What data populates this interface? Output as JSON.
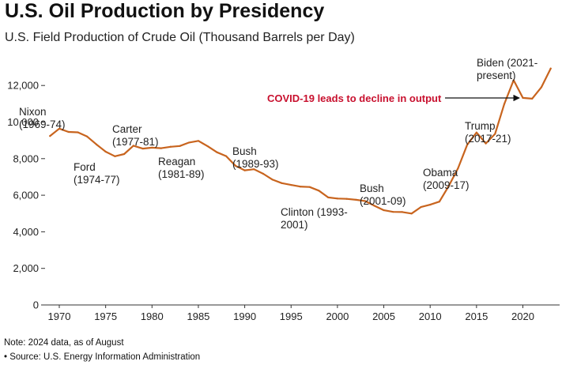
{
  "chart_data": {
    "type": "line",
    "title": "U.S. Oil Production by Presidency",
    "subtitle": "U.S. Field Production of Crude Oil (Thousand Barrels per Day)",
    "xlabel": "",
    "ylabel": "",
    "xlim": [
      1969,
      2024
    ],
    "ylim": [
      0,
      13000
    ],
    "grid": false,
    "line_color": "#c8641e",
    "yticks": [
      {
        "value": 0,
        "label": "0"
      },
      {
        "value": 2000,
        "label": "2,000"
      },
      {
        "value": 4000,
        "label": "4,000"
      },
      {
        "value": 6000,
        "label": "6,000"
      },
      {
        "value": 8000,
        "label": "8,000"
      },
      {
        "value": 10000,
        "label": "10,000"
      },
      {
        "value": 12000,
        "label": "12,000"
      }
    ],
    "xticks": [
      {
        "value": 1970,
        "label": "1970"
      },
      {
        "value": 1975,
        "label": "1975"
      },
      {
        "value": 1980,
        "label": "1980"
      },
      {
        "value": 1985,
        "label": "1985"
      },
      {
        "value": 1990,
        "label": "1990"
      },
      {
        "value": 1995,
        "label": "1995"
      },
      {
        "value": 2000,
        "label": "2000"
      },
      {
        "value": 2005,
        "label": "2005"
      },
      {
        "value": 2010,
        "label": "2010"
      },
      {
        "value": 2015,
        "label": "2015"
      },
      {
        "value": 2020,
        "label": "2020"
      }
    ],
    "series": [
      {
        "name": "U.S. Field Production of Crude Oil",
        "x": [
          1969,
          1970,
          1971,
          1972,
          1973,
          1974,
          1975,
          1976,
          1977,
          1978,
          1979,
          1980,
          1981,
          1982,
          1983,
          1984,
          1985,
          1986,
          1987,
          1988,
          1989,
          1990,
          1991,
          1992,
          1993,
          1994,
          1995,
          1996,
          1997,
          1998,
          1999,
          2000,
          2001,
          2002,
          2003,
          2004,
          2005,
          2006,
          2007,
          2008,
          2009,
          2010,
          2011,
          2012,
          2013,
          2014,
          2015,
          2016,
          2017,
          2018,
          2019,
          2020,
          2021,
          2022,
          2023
        ],
        "y": [
          9240,
          9640,
          9460,
          9440,
          9210,
          8780,
          8380,
          8130,
          8250,
          8710,
          8550,
          8600,
          8570,
          8650,
          8690,
          8880,
          8970,
          8680,
          8350,
          8140,
          7610,
          7360,
          7420,
          7170,
          6850,
          6660,
          6560,
          6470,
          6450,
          6250,
          5880,
          5820,
          5800,
          5750,
          5680,
          5420,
          5180,
          5090,
          5080,
          5000,
          5350,
          5480,
          5650,
          6500,
          7470,
          8760,
          9430,
          8830,
          9350,
          10990,
          12290,
          11320,
          11280,
          11910,
          12930
        ]
      }
    ],
    "annotations": [
      {
        "id": "nixon",
        "lines": [
          "Nixon",
          "(1969-74)"
        ]
      },
      {
        "id": "ford",
        "lines": [
          "Ford",
          "(1974-77)"
        ]
      },
      {
        "id": "carter",
        "lines": [
          "Carter",
          "(1977-81)"
        ]
      },
      {
        "id": "reagan",
        "lines": [
          "Reagan",
          "(1981-89)"
        ]
      },
      {
        "id": "bush1",
        "lines": [
          "Bush",
          "(1989-93)"
        ]
      },
      {
        "id": "clinton",
        "lines": [
          "Clinton (1993-",
          "2001)"
        ]
      },
      {
        "id": "bush2",
        "lines": [
          "Bush",
          "(2001-09)"
        ]
      },
      {
        "id": "obama",
        "lines": [
          "Obama",
          "(2009-17)"
        ]
      },
      {
        "id": "trump",
        "lines": [
          "Trump",
          "(2017-21)"
        ]
      },
      {
        "id": "biden",
        "lines": [
          "Biden (2021-",
          "present)"
        ]
      }
    ],
    "callout": {
      "text": "COVID-19 leads to decline in output",
      "color": "#c8102e",
      "points_to_year": 2019
    }
  },
  "footer": {
    "note": "Note: 2024 data, as of August",
    "source": "• Source: U.S. Energy Information Administration"
  }
}
